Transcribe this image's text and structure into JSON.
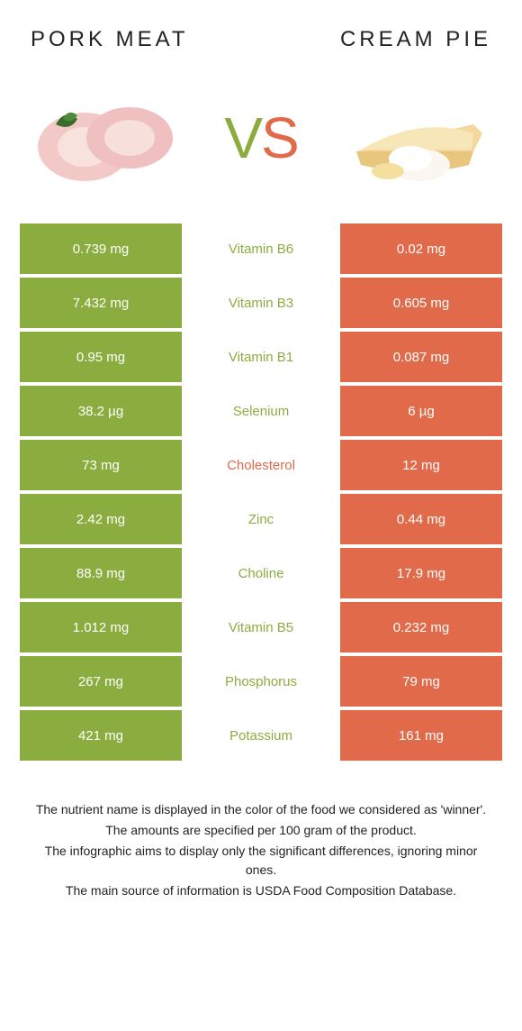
{
  "leftTitle": "PORK MEAT",
  "rightTitle": "CREAM PIE",
  "vs": {
    "v": "V",
    "s": "S"
  },
  "colors": {
    "left": "#8bad3f",
    "right": "#e06a4a",
    "labelText": "#ffffff",
    "background": "#ffffff"
  },
  "rows": [
    {
      "left": "0.739 mg",
      "name": "Vitamin B6",
      "right": "0.02 mg",
      "winner": "left"
    },
    {
      "left": "7.432 mg",
      "name": "Vitamin B3",
      "right": "0.605 mg",
      "winner": "left"
    },
    {
      "left": "0.95 mg",
      "name": "Vitamin B1",
      "right": "0.087 mg",
      "winner": "left"
    },
    {
      "left": "38.2 µg",
      "name": "Selenium",
      "right": "6 µg",
      "winner": "left"
    },
    {
      "left": "73 mg",
      "name": "Cholesterol",
      "right": "12 mg",
      "winner": "right"
    },
    {
      "left": "2.42 mg",
      "name": "Zinc",
      "right": "0.44 mg",
      "winner": "left"
    },
    {
      "left": "88.9 mg",
      "name": "Choline",
      "right": "17.9 mg",
      "winner": "left"
    },
    {
      "left": "1.012 mg",
      "name": "Vitamin B5",
      "right": "0.232 mg",
      "winner": "left"
    },
    {
      "left": "267 mg",
      "name": "Phosphorus",
      "right": "79 mg",
      "winner": "left"
    },
    {
      "left": "421 mg",
      "name": "Potassium",
      "right": "161 mg",
      "winner": "left"
    }
  ],
  "notes": [
    "The nutrient name is displayed in the color of the food we considered as 'winner'.",
    "The amounts are specified per 100 gram of the product.",
    "The infographic aims to display only the significant differences, ignoring minor ones.",
    "The main source of information is USDA Food Composition Database."
  ]
}
